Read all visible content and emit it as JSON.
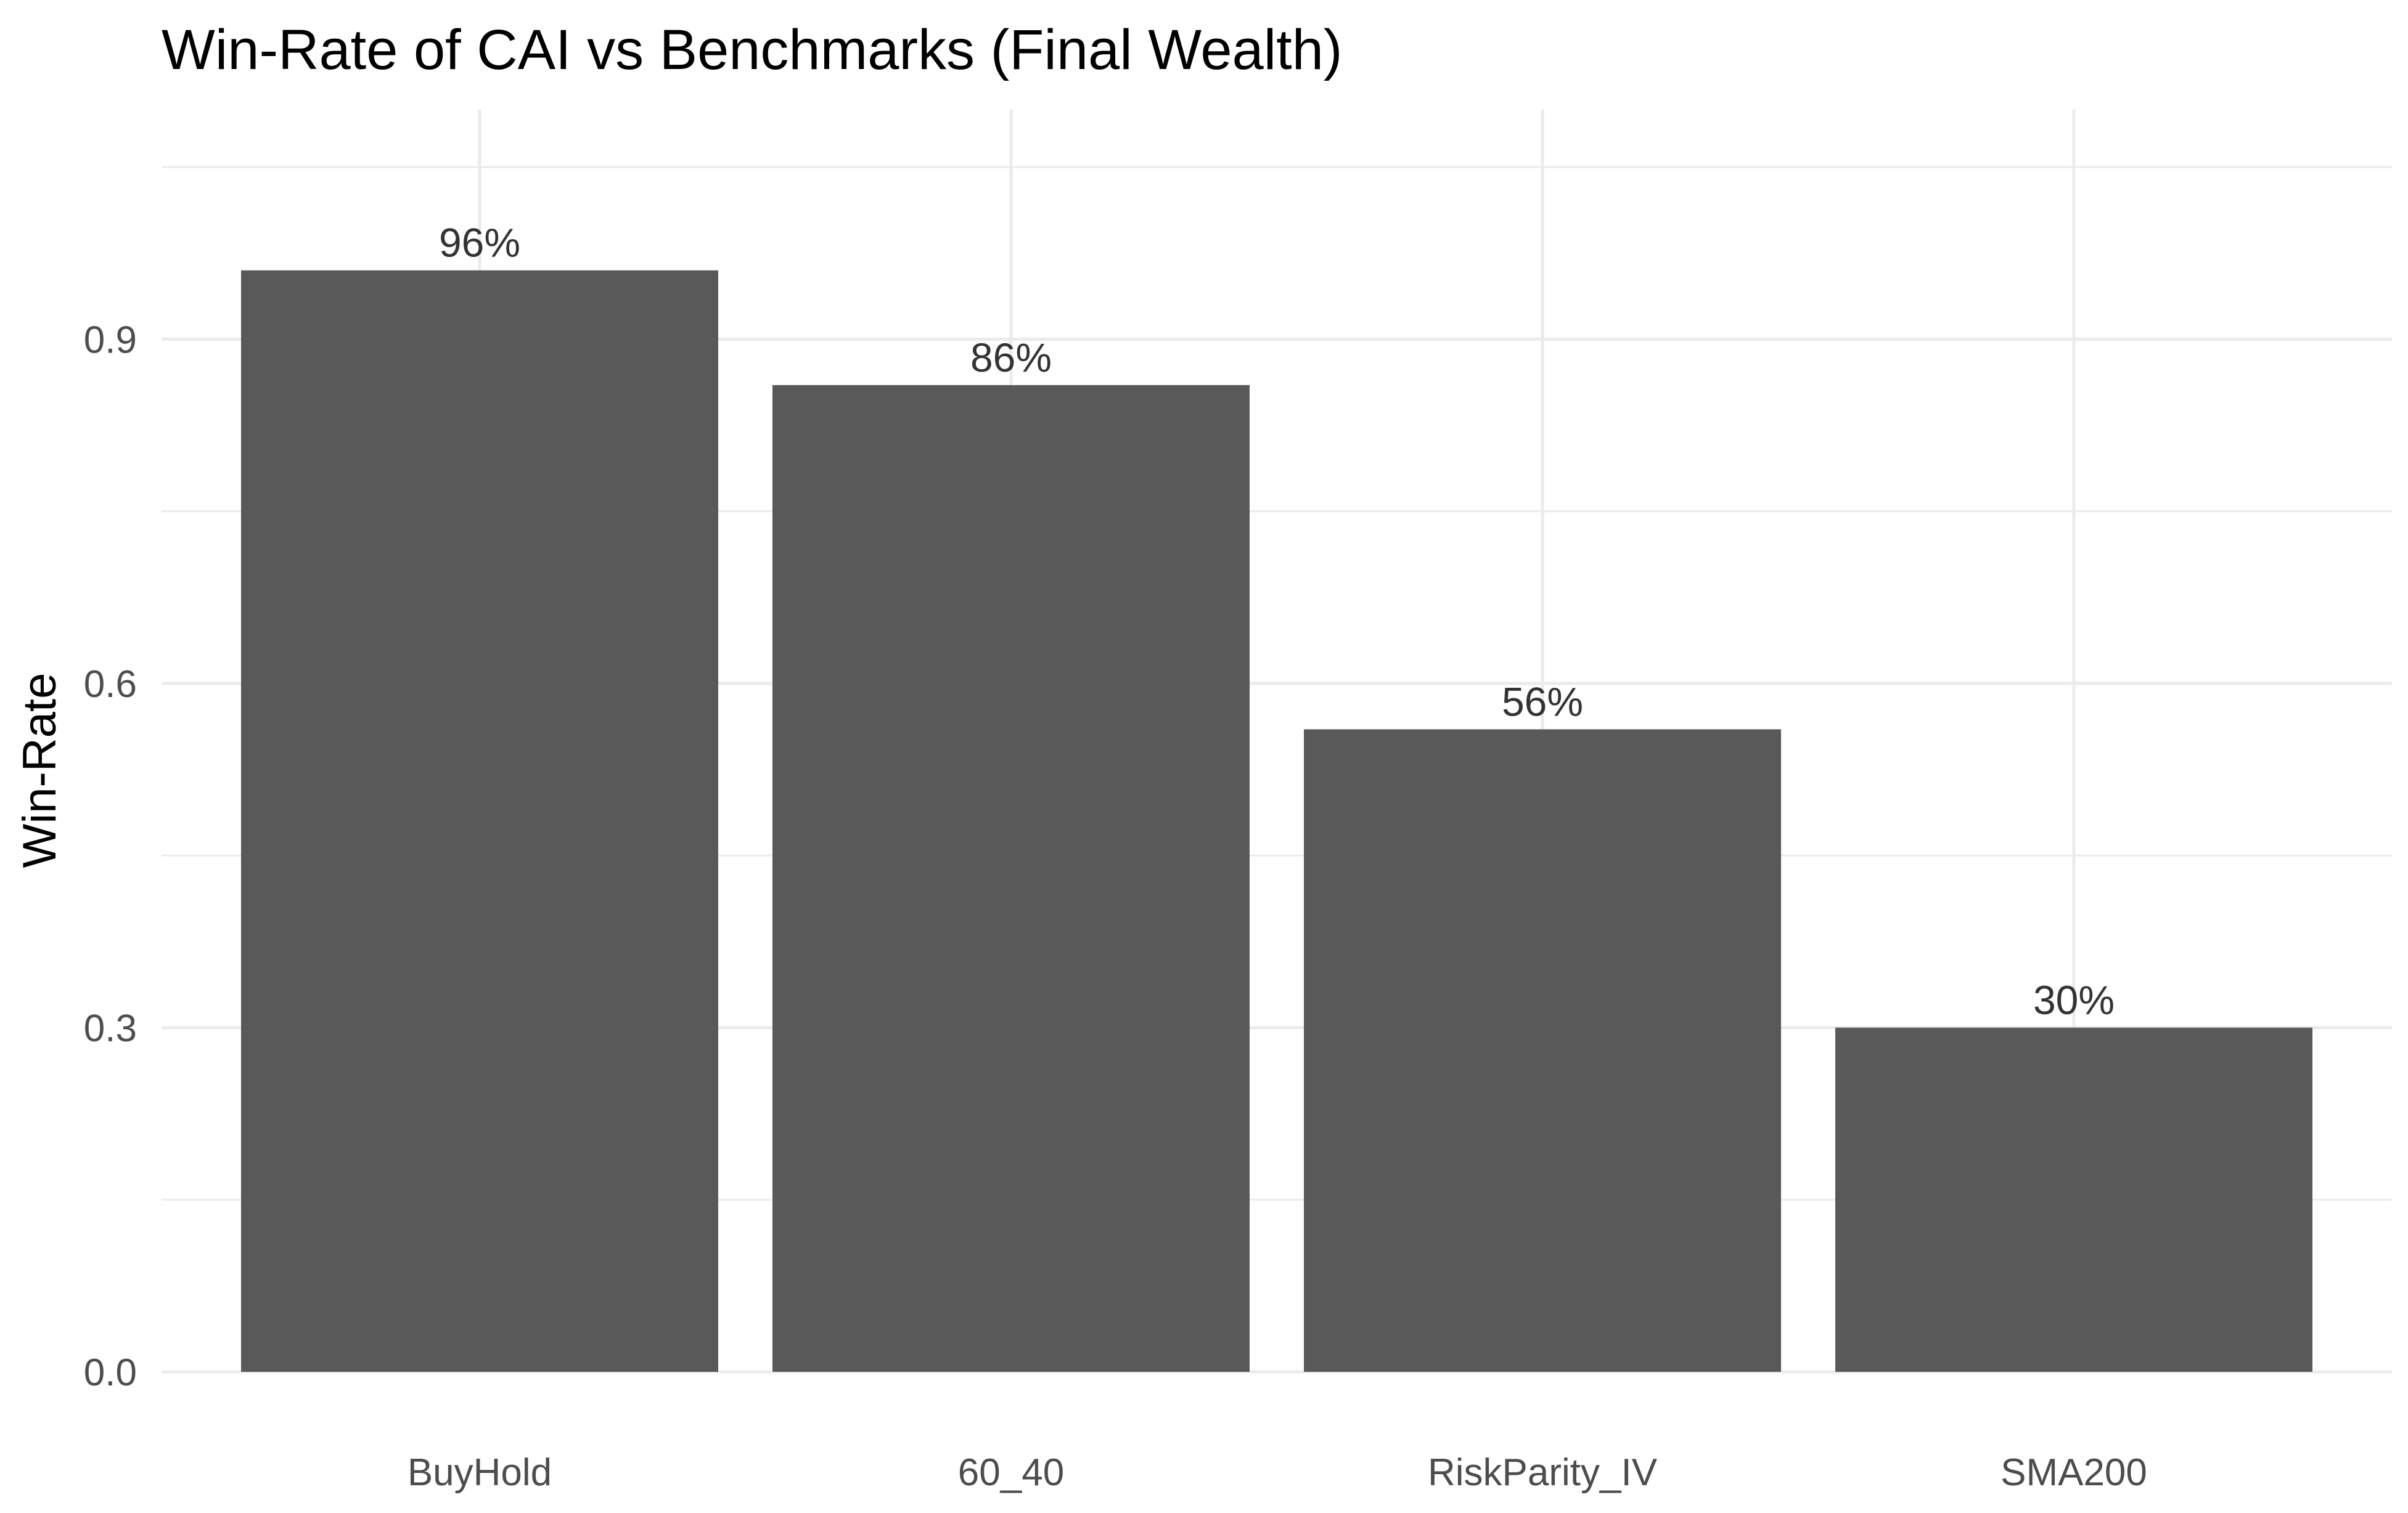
{
  "chart_data": {
    "type": "bar",
    "title": "Win-Rate of CAI vs Benchmarks (Final Wealth)",
    "xlabel": "",
    "ylabel": "Win-Rate",
    "categories": [
      "BuyHold",
      "60_40",
      "RiskParity_IV",
      "SMA200"
    ],
    "values": [
      0.96,
      0.86,
      0.56,
      0.3
    ],
    "data_labels": [
      "96%",
      "86%",
      "56%",
      "30%"
    ],
    "ylim": [
      0,
      1.1
    ],
    "y_ticks": [
      0.0,
      0.3,
      0.6,
      0.9
    ],
    "y_tick_labels": [
      "0.0",
      "0.3",
      "0.6",
      "0.9"
    ],
    "grid": true,
    "legend": "none",
    "bar_color": "#595959",
    "grid_color": "#ebebeb",
    "background_color": "#ffffff"
  }
}
